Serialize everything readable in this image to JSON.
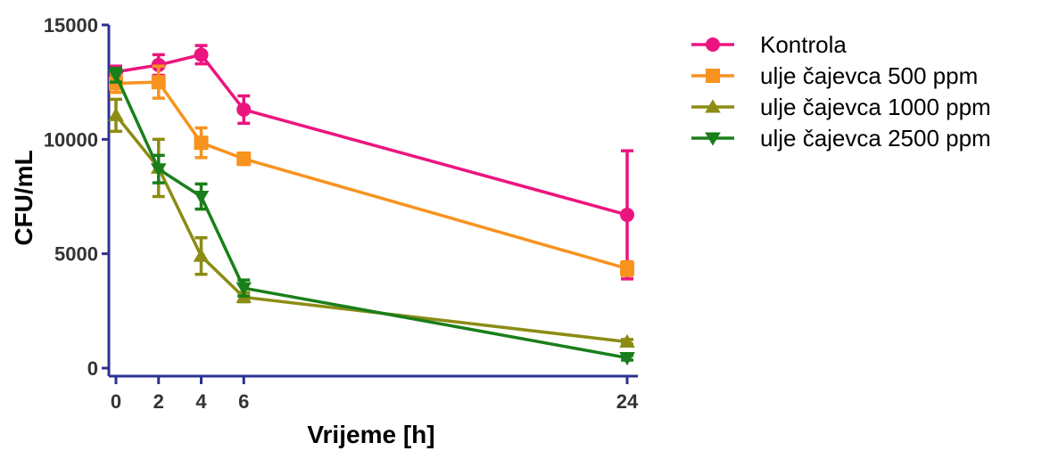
{
  "colors": {
    "axis": "#2e3192",
    "tick_text": "#333333",
    "Kontrola": "#ec1580",
    "ulje_500": "#f7931e",
    "ulje_1000": "#8c8c14",
    "ulje_2500": "#1a7f1a"
  },
  "chart_data": {
    "type": "line",
    "title": "",
    "xlabel": "Vrijeme [h]",
    "ylabel": "CFU/mL",
    "xlim": [
      0,
      24
    ],
    "ylim": [
      0,
      15000
    ],
    "x_ticks": [
      0,
      2,
      4,
      6,
      24
    ],
    "y_ticks": [
      0,
      5000,
      10000,
      15000
    ],
    "x": [
      0,
      2,
      4,
      6,
      24
    ],
    "grid": false,
    "legend_position": "top-right",
    "series": [
      {
        "name": "Kontrola",
        "marker": "circle",
        "color": "#ec1580",
        "values": [
          12950,
          13250,
          13700,
          11300,
          6700
        ],
        "error": [
          250,
          450,
          400,
          600,
          2800
        ]
      },
      {
        "name": "ulje čajevca 500 ppm",
        "marker": "square",
        "color": "#f7931e",
        "values": [
          12450,
          12500,
          9850,
          9150,
          4350
        ],
        "error": [
          400,
          700,
          650,
          250,
          300
        ]
      },
      {
        "name": "ulje čajevca 1000 ppm",
        "marker": "triangle-up",
        "color": "#8c8c14",
        "values": [
          11050,
          8750,
          4900,
          3100,
          1150
        ],
        "error": [
          700,
          1250,
          800,
          200,
          100
        ]
      },
      {
        "name": "ulje čajevca 2500 ppm",
        "marker": "triangle-down",
        "color": "#1a7f1a",
        "values": [
          12800,
          8700,
          7500,
          3500,
          450
        ],
        "error": [
          300,
          600,
          550,
          350,
          100
        ]
      }
    ]
  }
}
